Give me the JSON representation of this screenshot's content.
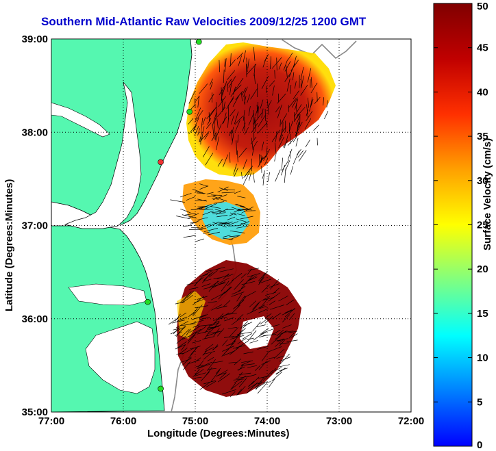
{
  "title": "Southern Mid-Atlantic Raw Velocities 2009/12/25 1200 GMT",
  "xlabel": "Longitude (Degrees:Minutes)",
  "ylabel": "Latitude (Degrees:Minutes)",
  "colorbar_label": "Surface Velocity (cm/s)",
  "colors": {
    "land": "#55f7b0",
    "title": "#0000cc",
    "grid": "#000000",
    "station": "#22dd22",
    "station_alt": "#ee3333"
  },
  "chart_data": {
    "type": "heatmap",
    "title": "Southern Mid-Atlantic Raw Velocities 2009/12/25 1200 GMT",
    "xlabel": "Longitude (Degrees:Minutes)",
    "ylabel": "Latitude (Degrees:Minutes)",
    "xlim": [
      -77,
      -72
    ],
    "ylim": [
      35,
      39
    ],
    "x_ticks": [
      "77:00",
      "76:00",
      "75:00",
      "74:00",
      "73:00",
      "72:00"
    ],
    "y_ticks": [
      "39:00",
      "38:00",
      "37:00",
      "36:00",
      "35:00"
    ],
    "grid": true,
    "grid_style": "dotted",
    "colorbar": {
      "label": "Surface Velocity (cm/s)",
      "range": [
        0,
        50
      ],
      "ticks": [
        0,
        5,
        10,
        15,
        20,
        25,
        30,
        35,
        40,
        45,
        50
      ],
      "colormap": "jet"
    },
    "stations": [
      {
        "lon": -74.95,
        "lat": 38.97,
        "color": "green"
      },
      {
        "lon": -75.08,
        "lat": 38.22,
        "color": "green"
      },
      {
        "lon": -75.48,
        "lat": 37.68,
        "color": "red"
      },
      {
        "lon": -75.66,
        "lat": 36.18,
        "color": "green"
      },
      {
        "lon": -75.48,
        "lat": 35.25,
        "color": "green"
      }
    ]
  }
}
